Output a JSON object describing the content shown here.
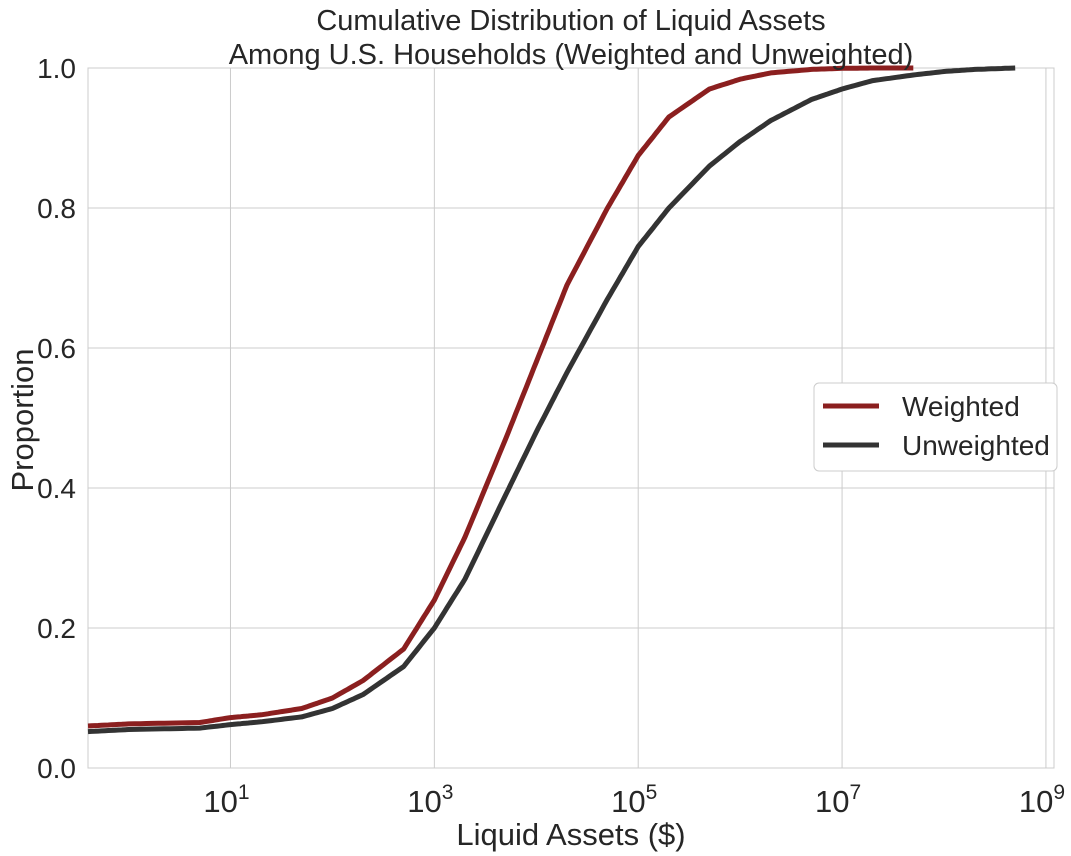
{
  "chart_data": {
    "type": "line",
    "title_line1": "Cumulative Distribution of Liquid Assets",
    "title_line2": "Among U.S. Households (Weighted and Unweighted)",
    "xlabel": "Liquid Assets ($)",
    "ylabel": "Proportion",
    "x_scale": "log",
    "xlim": [
      0.4,
      1200000000
    ],
    "ylim": [
      0,
      1
    ],
    "grid": true,
    "x_ticks": [
      {
        "value": 10,
        "base": "10",
        "exp": "1"
      },
      {
        "value": 1000,
        "base": "10",
        "exp": "3"
      },
      {
        "value": 100000,
        "base": "10",
        "exp": "5"
      },
      {
        "value": 10000000,
        "base": "10",
        "exp": "7"
      },
      {
        "value": 1000000000,
        "base": "10",
        "exp": "9"
      }
    ],
    "y_ticks": [
      {
        "value": 0.0,
        "label": "0.0"
      },
      {
        "value": 0.2,
        "label": "0.2"
      },
      {
        "value": 0.4,
        "label": "0.4"
      },
      {
        "value": 0.6,
        "label": "0.6"
      },
      {
        "value": 0.8,
        "label": "0.8"
      },
      {
        "value": 1.0,
        "label": "1.0"
      }
    ],
    "legend": {
      "position": "center-right"
    },
    "series": [
      {
        "name": "Weighted",
        "color": "#8b1f1f",
        "x": [
          0.4,
          1,
          5,
          10,
          20,
          50,
          100,
          200,
          500,
          1000,
          2000,
          5000,
          10000,
          20000,
          50000,
          100000,
          200000,
          500000,
          1000000,
          2000000,
          5000000,
          10000000,
          20000000,
          50000000
        ],
        "y": [
          0.06,
          0.063,
          0.065,
          0.072,
          0.076,
          0.085,
          0.1,
          0.125,
          0.17,
          0.24,
          0.33,
          0.47,
          0.58,
          0.69,
          0.8,
          0.875,
          0.93,
          0.97,
          0.984,
          0.993,
          0.998,
          0.9995,
          1.0,
          1.0
        ]
      },
      {
        "name": "Unweighted",
        "color": "#333333",
        "x": [
          0.4,
          1,
          5,
          10,
          20,
          50,
          100,
          200,
          500,
          1000,
          2000,
          5000,
          10000,
          20000,
          50000,
          100000,
          200000,
          500000,
          1000000,
          2000000,
          5000000,
          10000000,
          20000000,
          50000000,
          100000000,
          200000000,
          500000000
        ],
        "y": [
          0.052,
          0.055,
          0.057,
          0.062,
          0.066,
          0.073,
          0.085,
          0.105,
          0.145,
          0.2,
          0.27,
          0.39,
          0.48,
          0.565,
          0.67,
          0.745,
          0.8,
          0.86,
          0.895,
          0.925,
          0.955,
          0.97,
          0.982,
          0.99,
          0.995,
          0.998,
          1.0
        ]
      }
    ]
  }
}
